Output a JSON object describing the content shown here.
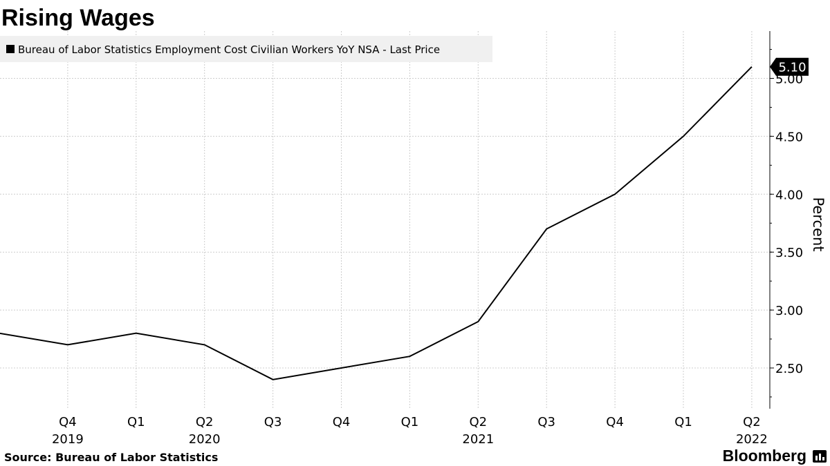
{
  "chart_data": {
    "type": "line",
    "title": "Rising Wages",
    "ylabel": "Percent",
    "xlabel": "",
    "ylim": [
      2.25,
      5.5
    ],
    "yticks": [
      2.5,
      3.0,
      3.5,
      4.0,
      4.5,
      5.0
    ],
    "ytick_labels": [
      "2.50",
      "3.00",
      "3.50",
      "4.00",
      "4.50",
      "5.00"
    ],
    "quarter_labels": [
      "Q4",
      "Q1",
      "Q2",
      "Q3",
      "Q4",
      "Q1",
      "Q2",
      "Q3",
      "Q4",
      "Q1",
      "Q2"
    ],
    "year_labels": [
      {
        "label": "2019",
        "index": 0
      },
      {
        "label": "2020",
        "index": 2
      },
      {
        "label": "2021",
        "index": 6
      },
      {
        "label": "2022",
        "index": 10
      }
    ],
    "series": [
      {
        "name": "Bureau of Labor Statistics Employment Cost Civilian Workers YoY NSA - Last Price",
        "color": "#000000",
        "x": [
          "2019 Q3",
          "2019 Q4",
          "2020 Q1",
          "2020 Q2",
          "2020 Q3",
          "2020 Q4",
          "2021 Q1",
          "2021 Q2",
          "2021 Q3",
          "2021 Q4",
          "2022 Q1",
          "2022 Q2"
        ],
        "values": [
          2.8,
          2.7,
          2.8,
          2.7,
          2.4,
          2.5,
          2.6,
          2.9,
          3.7,
          4.0,
          4.5,
          5.1
        ]
      }
    ],
    "last_value_label": "5.10",
    "legend": "top-left",
    "grid": true
  },
  "legend": {
    "label": "Bureau of Labor Statistics Employment Cost Civilian Workers YoY NSA - Last Price"
  },
  "footer": {
    "source": "Source: Bureau of Labor Statistics",
    "brand": "Bloomberg"
  },
  "colors": {
    "line": "#000000",
    "grid": "#cccccc",
    "legend_bg": "#f0f0f0"
  }
}
